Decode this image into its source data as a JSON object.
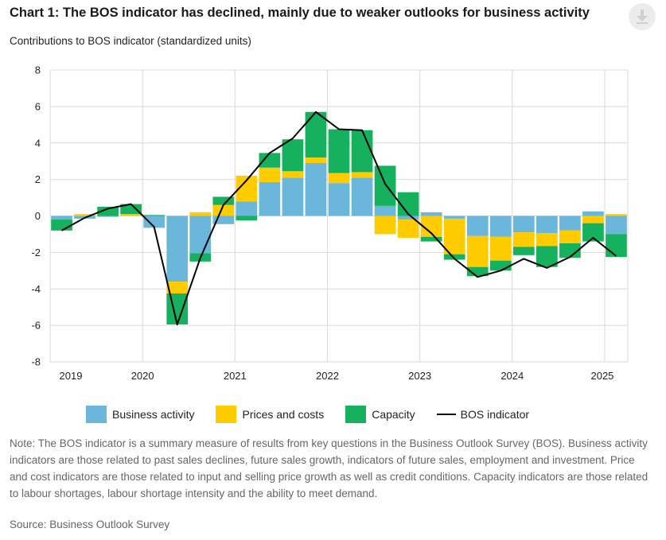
{
  "title": "Chart 1: The BOS indicator has declined, mainly due to weaker outlooks for business activity",
  "subtitle": "Contributions to BOS indicator (standardized units)",
  "download_icon": "download-icon",
  "colors": {
    "business": "#6bb7dc",
    "prices": "#ffcc00",
    "capacity": "#15b15e",
    "line": "#000000",
    "grid": "#d9d9d9"
  },
  "chart_data": {
    "type": "bar",
    "stacked": true,
    "title": "Chart 1: The BOS indicator has declined, mainly due to weaker outlooks for business activity",
    "ylabel": "Contributions to BOS indicator (standardized units)",
    "ylim": [
      -8,
      8
    ],
    "yticks": [
      "8",
      "6",
      "4",
      "2",
      "0",
      "-2",
      "-4",
      "-6",
      "-8"
    ],
    "xticks": [
      "2019",
      "2020",
      "2021",
      "2022",
      "2023",
      "2024",
      "2025"
    ],
    "grid": true,
    "legend_position": "bottom",
    "categories": [
      "2019Q1",
      "2019Q2",
      "2019Q3",
      "2019Q4",
      "2020Q1",
      "2020Q2",
      "2020Q3",
      "2020Q4",
      "2021Q1",
      "2021Q2",
      "2021Q3",
      "2021Q4",
      "2022Q1",
      "2022Q2",
      "2022Q3",
      "2022Q4",
      "2023Q1",
      "2023Q2",
      "2023Q3",
      "2023Q4",
      "2024Q1",
      "2024Q2",
      "2024Q3",
      "2024Q4",
      "2025Q1"
    ],
    "series": [
      {
        "name": "Business activity",
        "key": "business",
        "values": [
          -0.2,
          -0.15,
          -0.05,
          0.0,
          -0.65,
          -3.6,
          -2.05,
          -0.45,
          0.8,
          1.85,
          2.1,
          2.9,
          1.8,
          2.1,
          0.55,
          -0.2,
          0.2,
          -0.15,
          -1.1,
          -1.15,
          -0.9,
          -0.95,
          -0.8,
          0.25,
          -1.0
        ]
      },
      {
        "name": "Prices and costs",
        "key": "prices",
        "values": [
          0.0,
          0.1,
          0.0,
          0.1,
          0.0,
          -0.65,
          0.2,
          0.6,
          1.4,
          0.8,
          0.35,
          0.3,
          0.55,
          0.3,
          -1.0,
          -1.0,
          -1.15,
          -1.95,
          -1.7,
          -1.3,
          -0.8,
          -0.7,
          -0.7,
          -0.4,
          0.1
        ]
      },
      {
        "name": "Capacity",
        "key": "capacity",
        "values": [
          -0.6,
          0.0,
          0.5,
          0.55,
          0.05,
          -1.7,
          -0.45,
          0.45,
          -0.25,
          0.8,
          1.75,
          2.5,
          2.4,
          2.3,
          2.2,
          1.3,
          -0.25,
          -0.3,
          -0.5,
          -0.55,
          -0.45,
          -1.15,
          -0.8,
          -1.0,
          -1.25
        ]
      },
      {
        "name": "BOS indicator",
        "key": "line",
        "type": "line",
        "values": [
          -0.8,
          -0.1,
          0.4,
          0.65,
          -0.6,
          -5.95,
          -2.3,
          0.6,
          1.95,
          3.45,
          4.25,
          5.7,
          4.75,
          4.7,
          1.75,
          0.1,
          -0.95,
          -2.35,
          -3.35,
          -3.0,
          -2.35,
          -2.85,
          -2.25,
          -1.2,
          -2.2
        ]
      }
    ]
  },
  "legend": [
    {
      "label": "Business activity",
      "key": "business"
    },
    {
      "label": "Prices and costs",
      "key": "prices"
    },
    {
      "label": "Capacity",
      "key": "capacity"
    },
    {
      "label": "BOS indicator",
      "key": "line"
    }
  ],
  "note": "Note: The BOS indicator is a summary measure of results from key questions in the Business Outlook Survey (BOS). Business activity indicators are those related to past sales declines, future sales growth, indicators of future sales, employment and investment. Price and cost indicators are those related to input and selling price growth as well as credit conditions. Capacity indicators are those related to labour shortages, labour shortage intensity and the ability to meet demand.",
  "source": "Source: Business Outlook Survey"
}
